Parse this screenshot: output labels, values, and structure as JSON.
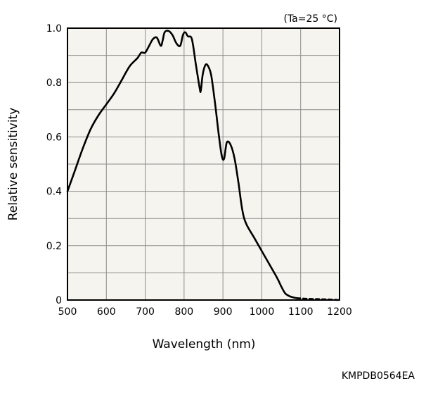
{
  "chart_data": {
    "type": "line",
    "condition_label": "(Ta=25 °C)",
    "xlabel": "Wavelength (nm)",
    "ylabel": "Relative sensitivity",
    "xlim": [
      500,
      1200
    ],
    "ylim": [
      0,
      1.0
    ],
    "x_ticks": [
      500,
      600,
      700,
      800,
      900,
      1000,
      1100,
      1200
    ],
    "x_tick_labels": [
      "500",
      "600",
      "700",
      "800",
      "900",
      "1000",
      "1100",
      "1200"
    ],
    "y_ticks": [
      0,
      0.2,
      0.4,
      0.6,
      0.8,
      1.0
    ],
    "y_tick_labels": [
      "0",
      "0.2",
      "0.4",
      "0.6",
      "0.8",
      "1.0"
    ],
    "grid": true,
    "series": [
      {
        "style": "solid",
        "x": [
          500,
          520,
          540,
          560,
          580,
          600,
          620,
          640,
          660,
          680,
          690,
          700,
          710,
          720,
          730,
          740,
          745,
          750,
          760,
          770,
          780,
          790,
          797,
          803,
          810,
          820,
          830,
          840,
          843,
          848,
          855,
          862,
          870,
          880,
          890,
          897,
          903,
          910,
          920,
          930,
          940,
          950,
          960,
          980,
          1000,
          1020,
          1040,
          1050,
          1060,
          1070,
          1080,
          1090
        ],
        "y": [
          0.4,
          0.48,
          0.56,
          0.63,
          0.68,
          0.72,
          0.76,
          0.81,
          0.86,
          0.89,
          0.91,
          0.91,
          0.935,
          0.96,
          0.965,
          0.935,
          0.955,
          0.985,
          0.99,
          0.975,
          0.945,
          0.935,
          0.975,
          0.985,
          0.97,
          0.96,
          0.87,
          0.78,
          0.77,
          0.83,
          0.865,
          0.86,
          0.825,
          0.72,
          0.6,
          0.53,
          0.52,
          0.58,
          0.57,
          0.52,
          0.43,
          0.33,
          0.28,
          0.23,
          0.18,
          0.13,
          0.08,
          0.05,
          0.025,
          0.015,
          0.01,
          0.007
        ]
      },
      {
        "style": "dashed",
        "x": [
          1090,
          1110,
          1130,
          1150,
          1170,
          1200
        ],
        "y": [
          0.007,
          0.005,
          0.004,
          0.003,
          0.002,
          0.0
        ]
      }
    ]
  },
  "footer": {
    "document_id": "KMPDB0564EA"
  }
}
